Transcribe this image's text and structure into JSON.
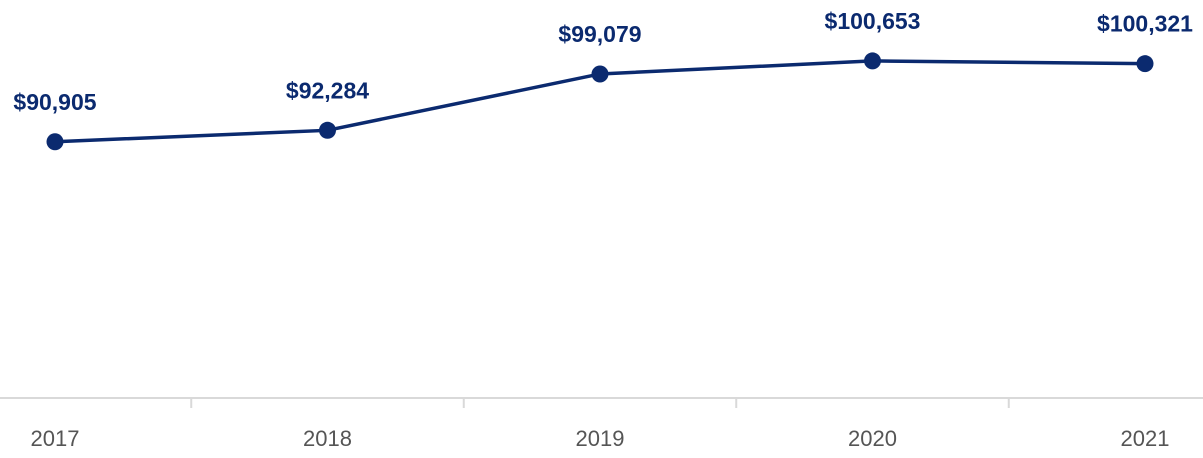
{
  "chart_data": {
    "type": "line",
    "categories": [
      "2017",
      "2018",
      "2019",
      "2020",
      "2021"
    ],
    "series": [
      {
        "color": "#0b2a6f",
        "values": [
          90905,
          92284,
          99079,
          100653,
          100321
        ],
        "value_labels": [
          "$90,905",
          "$92,284",
          "$99,079",
          "$100,653",
          "$100,321"
        ]
      }
    ],
    "ylim": [
      60000,
      108000
    ]
  }
}
